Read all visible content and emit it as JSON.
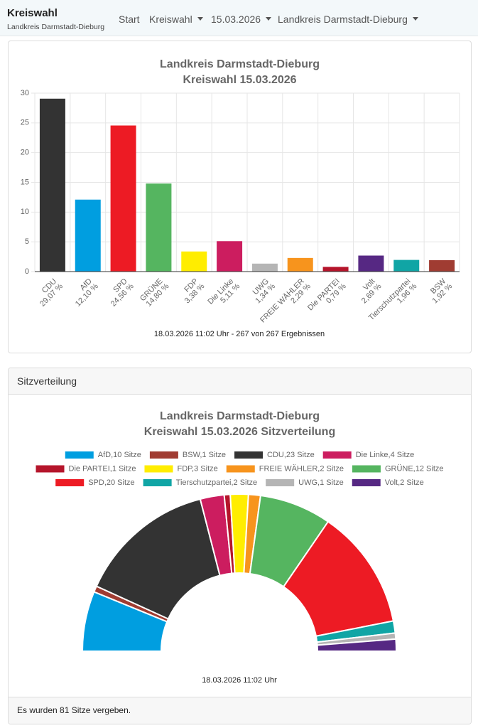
{
  "navbar": {
    "brand": "Kreiswahl",
    "brand_sub": "Landkreis Darmstadt-Dieburg",
    "links": [
      "Start",
      "Kreiswahl",
      "15.03.2026",
      "Landkreis Darmstadt-Dieburg"
    ]
  },
  "card": {
    "header": "Sitzverteilung",
    "footer": "Es wurden 81 Sitze vergeben."
  },
  "chart_data": [
    {
      "type": "bar",
      "title": [
        "Landkreis Darmstadt-Dieburg",
        "Kreiswahl 15.03.2026"
      ],
      "categories": [
        "CDU",
        "AfD",
        "SPD",
        "GRÜNE",
        "FDP",
        "Die Linke",
        "UWG",
        "FREIE WÄHLER",
        "Die PARTEI",
        "Volt",
        "Tierschutzpartei",
        "BSW"
      ],
      "values": [
        29.07,
        12.1,
        24.56,
        14.8,
        3.38,
        5.11,
        1.34,
        2.29,
        0.79,
        2.69,
        1.96,
        1.92
      ],
      "value_labels": [
        "29,07 %",
        "12,10 %",
        "24,56 %",
        "14,80 %",
        "3,38 %",
        "5,11 %",
        "1,34 %",
        "2,29 %",
        "0,79 %",
        "2,69 %",
        "1,96 %",
        "1,92 %"
      ],
      "colors": [
        "#333333",
        "#009ee0",
        "#ed1b24",
        "#55b560",
        "#ffed00",
        "#cc1d5f",
        "#b5b5b5",
        "#f7941d",
        "#b5152b",
        "#562883",
        "#10a5a5",
        "#a03c32"
      ],
      "ylim": [
        0,
        30
      ],
      "yticks": [
        0,
        5,
        10,
        15,
        20,
        25,
        30
      ],
      "grid": true,
      "caption": "18.03.2026 11:02 Uhr - 267 von 267 Ergebnissen"
    },
    {
      "type": "semi-donut",
      "title": [
        "Landkreis Darmstadt-Dieburg",
        "Kreiswahl 15.03.2026 Sitzverteilung"
      ],
      "categories": [
        "AfD,10 Sitze",
        "BSW,1 Sitze",
        "CDU,23 Sitze",
        "Die Linke,4 Sitze",
        "Die PARTEI,1 Sitze",
        "FDP,3 Sitze",
        "FREIE WÄHLER,2 Sitze",
        "GRÜNE,12 Sitze",
        "SPD,20 Sitze",
        "Tierschutzpartei,2 Sitze",
        "UWG,1 Sitze",
        "Volt,2 Sitze"
      ],
      "values": [
        10,
        1,
        23,
        4,
        1,
        3,
        2,
        12,
        20,
        2,
        1,
        2
      ],
      "colors": [
        "#009ee0",
        "#a03c32",
        "#333333",
        "#cc1d5f",
        "#b5152b",
        "#ffed00",
        "#f7941d",
        "#55b560",
        "#ed1b24",
        "#10a5a5",
        "#b5b5b5",
        "#562883"
      ],
      "legend": "top",
      "caption": "18.03.2026 11:02 Uhr"
    }
  ]
}
